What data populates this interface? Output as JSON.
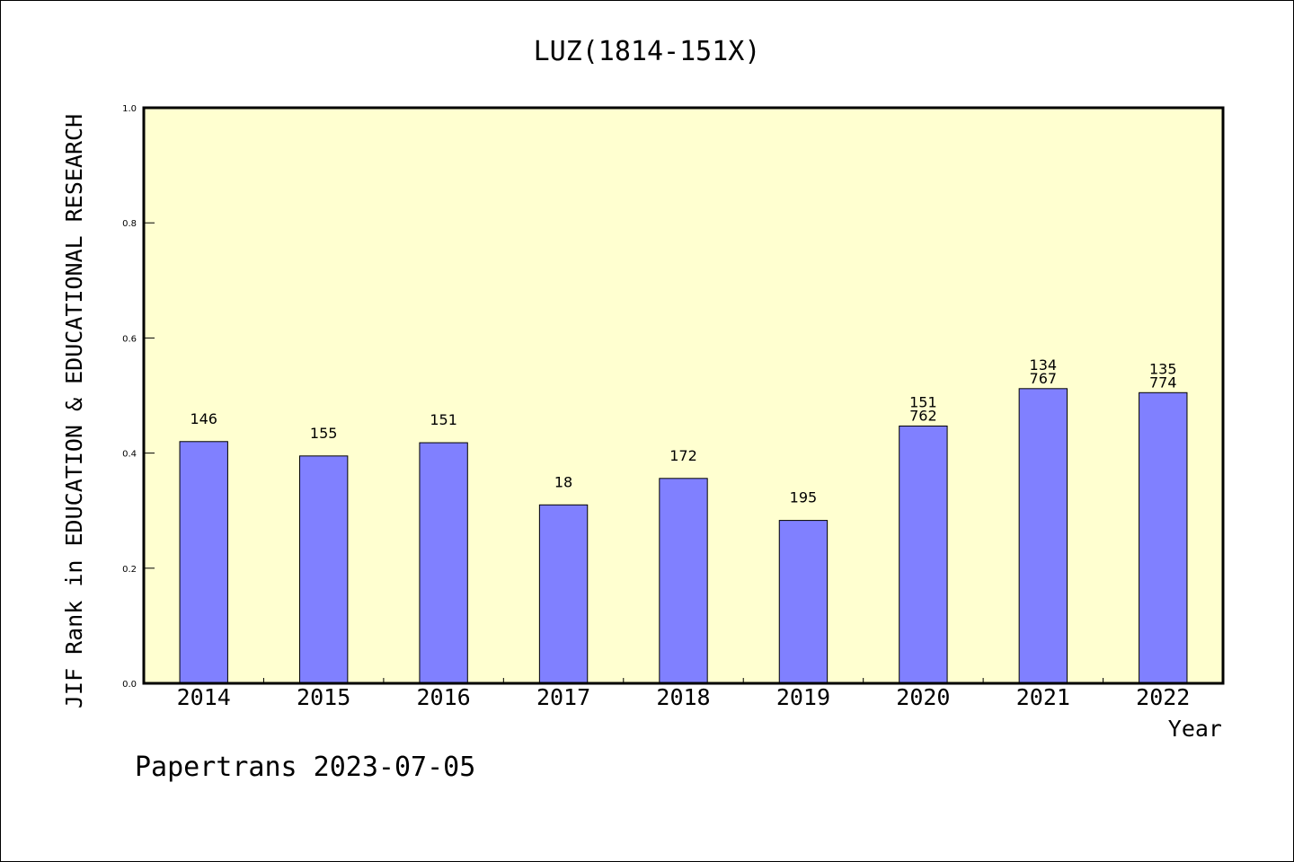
{
  "chart_data": {
    "type": "bar",
    "title": "LUZ(1814-151X)",
    "xlabel": "Year",
    "ylabel": "JIF Rank in EDUCATION & EDUCATIONAL RESEARCH",
    "categories": [
      "2014",
      "2015",
      "2016",
      "2017",
      "2018",
      "2019",
      "2020",
      "2021",
      "2022"
    ],
    "values": [
      0.42,
      0.395,
      0.418,
      0.31,
      0.356,
      0.283,
      0.447,
      0.512,
      0.505
    ],
    "data_labels": [
      [
        "146"
      ],
      [
        "155"
      ],
      [
        "151"
      ],
      [
        "18"
      ],
      [
        "172"
      ],
      [
        "195"
      ],
      [
        "151",
        "762"
      ],
      [
        "134",
        "767"
      ],
      [
        "135",
        "774"
      ]
    ],
    "ylim": [
      0,
      1.0
    ],
    "yticks": [
      "0.0",
      "0.2",
      "0.4",
      "0.6",
      "0.8",
      "1.0"
    ],
    "grid": false,
    "colors": {
      "plot_bg": "#ffffd0",
      "bar": "#8080ff",
      "bar_edge": "#000000"
    }
  },
  "footer": {
    "text": "Papertrans 2023-07-05"
  }
}
